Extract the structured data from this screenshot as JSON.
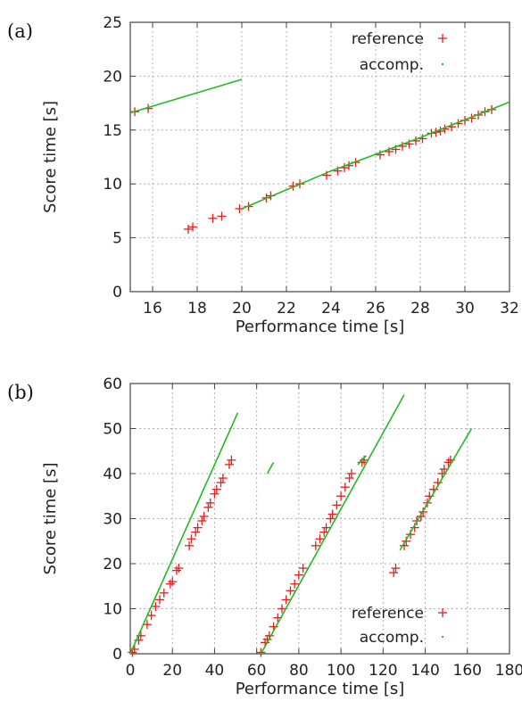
{
  "chart_data": [
    {
      "type": "scatter",
      "panel_label": "(a)",
      "xlabel": "Performance time [s]",
      "ylabel": "Score time [s]",
      "xlim": [
        15,
        32
      ],
      "ylim": [
        0,
        25
      ],
      "xticks": [
        16,
        18,
        20,
        22,
        24,
        26,
        28,
        30,
        32
      ],
      "yticks": [
        0,
        5,
        10,
        15,
        20,
        25
      ],
      "grid": true,
      "legend_position": "top-right",
      "series": [
        {
          "name": "reference",
          "marker": "plus",
          "color": "#e02020",
          "points": [
            [
              15.2,
              16.7
            ],
            [
              15.8,
              17.0
            ],
            [
              17.6,
              5.8
            ],
            [
              17.8,
              6.0
            ],
            [
              18.7,
              6.8
            ],
            [
              19.1,
              7.0
            ],
            [
              19.9,
              7.7
            ],
            [
              20.3,
              7.9
            ],
            [
              21.1,
              8.7
            ],
            [
              21.3,
              8.9
            ],
            [
              22.3,
              9.8
            ],
            [
              22.6,
              10.0
            ],
            [
              23.8,
              10.8
            ],
            [
              24.3,
              11.2
            ],
            [
              24.6,
              11.5
            ],
            [
              24.8,
              11.7
            ],
            [
              25.1,
              12.0
            ],
            [
              26.2,
              12.7
            ],
            [
              26.6,
              13.0
            ],
            [
              26.9,
              13.2
            ],
            [
              27.2,
              13.5
            ],
            [
              27.5,
              13.7
            ],
            [
              27.8,
              14.0
            ],
            [
              28.1,
              14.2
            ],
            [
              28.5,
              14.7
            ],
            [
              28.7,
              14.8
            ],
            [
              28.9,
              14.9
            ],
            [
              29.1,
              15.1
            ],
            [
              29.4,
              15.3
            ],
            [
              29.7,
              15.6
            ],
            [
              30.0,
              15.9
            ],
            [
              30.3,
              16.1
            ],
            [
              30.6,
              16.4
            ],
            [
              30.9,
              16.7
            ],
            [
              31.2,
              16.9
            ]
          ]
        },
        {
          "name": "accomp.",
          "marker": "dot",
          "color": "#22bb22",
          "segments": [
            [
              [
                15.0,
                16.6
              ],
              [
                20.0,
                19.7
              ]
            ],
            [
              [
                20.0,
                7.7
              ],
              [
                24.0,
                11.2
              ],
              [
                28.0,
                14.3
              ],
              [
                32.0,
                17.6
              ]
            ]
          ]
        }
      ]
    },
    {
      "type": "scatter",
      "panel_label": "(b)",
      "xlabel": "Performance time [s]",
      "ylabel": "Score time [s]",
      "xlim": [
        0,
        180
      ],
      "ylim": [
        0,
        60
      ],
      "xticks": [
        0,
        20,
        40,
        60,
        80,
        100,
        120,
        140,
        160,
        180
      ],
      "yticks": [
        0,
        10,
        20,
        30,
        40,
        50,
        60
      ],
      "grid": true,
      "legend_position": "bottom-right",
      "series": [
        {
          "name": "reference",
          "marker": "plus",
          "color": "#e02020",
          "points": [
            [
              1,
              0.3
            ],
            [
              2,
              1
            ],
            [
              4,
              3
            ],
            [
              5,
              4
            ],
            [
              8,
              6.5
            ],
            [
              10,
              8.5
            ],
            [
              12,
              10.5
            ],
            [
              14,
              12
            ],
            [
              16,
              13.5
            ],
            [
              19,
              15.5
            ],
            [
              20,
              16
            ],
            [
              22,
              18.5
            ],
            [
              23,
              19
            ],
            [
              28,
              24
            ],
            [
              29,
              25.5
            ],
            [
              31,
              27
            ],
            [
              32,
              28
            ],
            [
              34,
              29.5
            ],
            [
              35,
              30.5
            ],
            [
              37,
              32.5
            ],
            [
              38,
              33.5
            ],
            [
              40,
              35.5
            ],
            [
              41,
              36.5
            ],
            [
              43,
              38
            ],
            [
              44,
              39
            ],
            [
              47,
              42
            ],
            [
              48,
              43
            ],
            [
              62,
              0.3
            ],
            [
              64,
              2.5
            ],
            [
              65,
              3.2
            ],
            [
              66,
              4
            ],
            [
              68,
              6
            ],
            [
              70,
              8
            ],
            [
              72,
              10
            ],
            [
              74,
              12
            ],
            [
              76,
              14
            ],
            [
              78,
              15.5
            ],
            [
              80,
              17.5
            ],
            [
              82,
              19
            ],
            [
              88,
              24
            ],
            [
              90,
              25.5
            ],
            [
              92,
              27
            ],
            [
              93,
              28
            ],
            [
              95,
              30
            ],
            [
              96,
              31
            ],
            [
              98,
              33
            ],
            [
              100,
              35
            ],
            [
              102,
              37
            ],
            [
              104,
              39
            ],
            [
              105,
              40
            ],
            [
              110,
              42.5
            ],
            [
              111,
              43
            ],
            [
              125,
              18
            ],
            [
              126,
              19
            ],
            [
              130,
              24
            ],
            [
              131,
              25
            ],
            [
              133,
              26.5
            ],
            [
              135,
              28
            ],
            [
              136,
              29.5
            ],
            [
              138,
              30.5
            ],
            [
              139,
              31.5
            ],
            [
              141,
              33.5
            ],
            [
              142,
              35
            ],
            [
              144,
              36.5
            ],
            [
              146,
              38
            ],
            [
              148,
              40
            ],
            [
              149,
              41
            ],
            [
              151,
              42.5
            ],
            [
              152,
              43
            ]
          ]
        },
        {
          "name": "accomp.",
          "marker": "dot",
          "color": "#22bb22",
          "segments": [
            [
              [
                0,
                0
              ],
              [
                51,
                53.5
              ]
            ],
            [
              [
                65,
                40
              ],
              [
                68,
                42.5
              ]
            ],
            [
              [
                62,
                0
              ],
              [
                130,
                57.5
              ]
            ],
            [
              [
                108,
                42
              ],
              [
                112,
                44
              ]
            ],
            [
              [
                128,
                23
              ],
              [
                162,
                50
              ]
            ]
          ]
        }
      ]
    }
  ]
}
